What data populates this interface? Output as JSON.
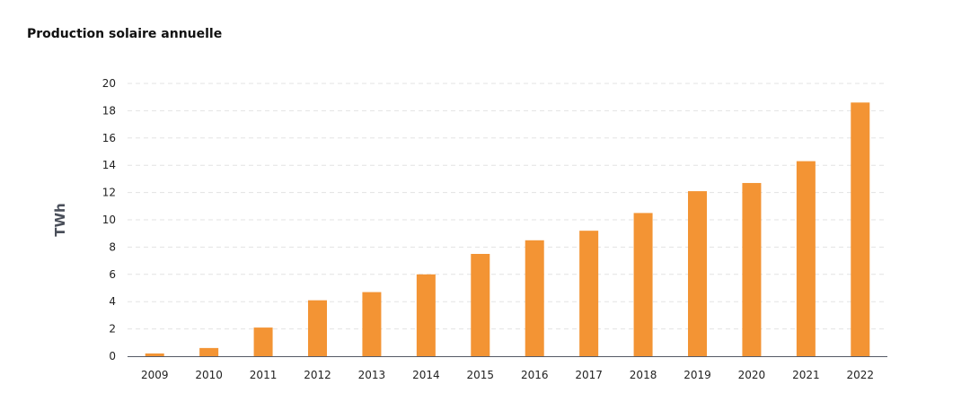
{
  "title": "Production solaire annuelle",
  "colors": {
    "bar": "#f39434",
    "grid": "#e3e3e3",
    "axis": "#555a66",
    "axis_title": "#4a4f5a"
  },
  "chart_data": {
    "type": "bar",
    "title": "Production solaire annuelle",
    "xlabel": "",
    "ylabel": "TWh",
    "categories": [
      "2009",
      "2010",
      "2011",
      "2012",
      "2013",
      "2014",
      "2015",
      "2016",
      "2017",
      "2018",
      "2019",
      "2020",
      "2021",
      "2022"
    ],
    "values": [
      0.2,
      0.6,
      2.1,
      4.1,
      4.7,
      6.0,
      7.5,
      8.5,
      9.2,
      10.5,
      12.1,
      12.7,
      14.3,
      18.6
    ],
    "yticks": [
      "0",
      "2",
      "4",
      "6",
      "8",
      "10",
      "12",
      "14",
      "16",
      "18",
      "20"
    ],
    "ylim": [
      0,
      20
    ],
    "grid": true,
    "legend": "none"
  }
}
